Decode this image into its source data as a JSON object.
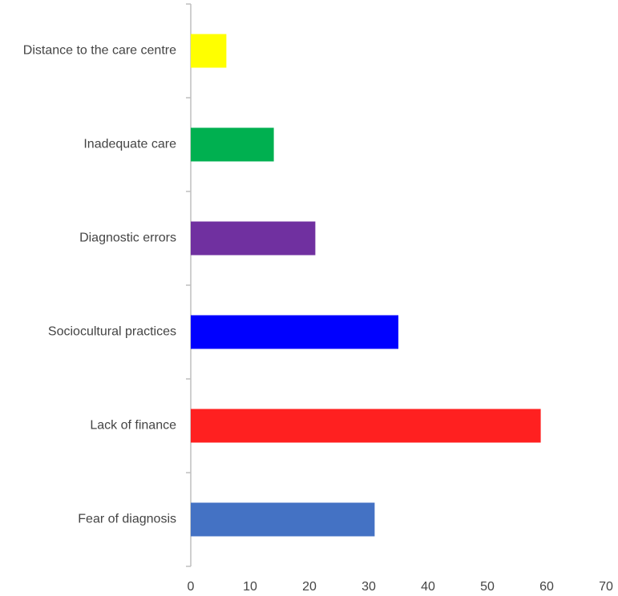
{
  "chart_data": {
    "type": "bar",
    "orientation": "horizontal",
    "categories": [
      "Fear of diagnosis",
      "Lack of finance",
      "Sociocultural practices",
      "Diagnostic errors",
      "Inadequate care",
      "Distance to the care centre"
    ],
    "values": [
      31,
      59,
      35,
      21,
      14,
      6
    ],
    "colors": [
      "#4472c4",
      "#ff2020",
      "#0000ff",
      "#7030a0",
      "#00b050",
      "#ffff00"
    ],
    "xlim": [
      0,
      70
    ],
    "xticks": [
      0,
      10,
      20,
      30,
      40,
      50,
      60,
      70
    ],
    "grid": false
  }
}
